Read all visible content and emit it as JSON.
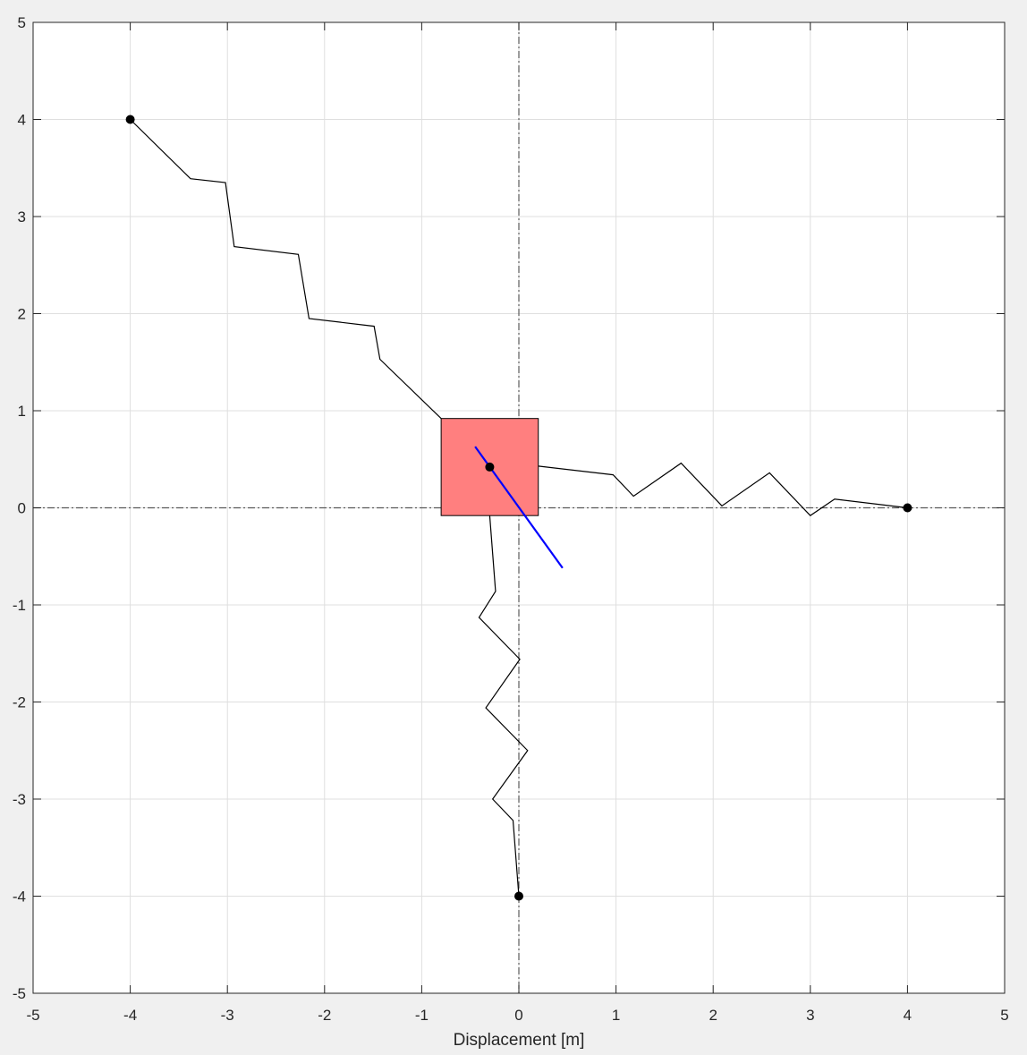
{
  "chart_data": {
    "type": "line",
    "title": "",
    "xlabel": "Displacement [m]",
    "ylabel": "",
    "xlim": [
      -5,
      5
    ],
    "ylim": [
      -5,
      5
    ],
    "xticks": [
      -5,
      -4,
      -3,
      -2,
      -1,
      0,
      1,
      2,
      3,
      4,
      5
    ],
    "yticks": [
      -5,
      -4,
      -3,
      -2,
      -1,
      0,
      1,
      2,
      3,
      4,
      5
    ],
    "grid": true,
    "reference_lines": {
      "x": 0,
      "y": 0,
      "style": "dash-dot"
    },
    "mass": {
      "x_range": [
        -0.8,
        0.2
      ],
      "y_range": [
        -0.08,
        0.92
      ],
      "color": "#ff7f7f",
      "center_point": [
        -0.3,
        0.42
      ]
    },
    "orientation_line": {
      "color": "#0000ff",
      "points": [
        [
          -0.45,
          0.63
        ],
        [
          0.45,
          -0.62
        ]
      ]
    },
    "anchors": [
      [
        -4,
        4
      ],
      [
        4,
        0
      ],
      [
        0,
        -4
      ]
    ],
    "springs": [
      {
        "name": "",
        "color": "#000000",
        "points": [
          [
            -4,
            4
          ],
          [
            -3.38,
            3.39
          ],
          [
            -3.02,
            3.35
          ],
          [
            -2.93,
            2.69
          ],
          [
            -2.27,
            2.61
          ],
          [
            -2.16,
            1.95
          ],
          [
            -1.49,
            1.87
          ],
          [
            -1.43,
            1.53
          ],
          [
            -0.8,
            0.92
          ]
        ]
      },
      {
        "name": "",
        "color": "#000000",
        "points": [
          [
            0.2,
            0.43
          ],
          [
            0.97,
            0.34
          ],
          [
            1.18,
            0.12
          ],
          [
            1.67,
            0.46
          ],
          [
            2.09,
            0.02
          ],
          [
            2.58,
            0.36
          ],
          [
            3.0,
            -0.08
          ],
          [
            3.25,
            0.09
          ],
          [
            4,
            0
          ]
        ]
      },
      {
        "name": "",
        "color": "#000000",
        "points": [
          [
            -0.3,
            -0.08
          ],
          [
            -0.24,
            -0.86
          ],
          [
            -0.41,
            -1.13
          ],
          [
            0.01,
            -1.56
          ],
          [
            -0.34,
            -2.06
          ],
          [
            0.09,
            -2.5
          ],
          [
            -0.27,
            -3.0
          ],
          [
            -0.06,
            -3.22
          ],
          [
            0,
            -4
          ]
        ]
      }
    ]
  }
}
